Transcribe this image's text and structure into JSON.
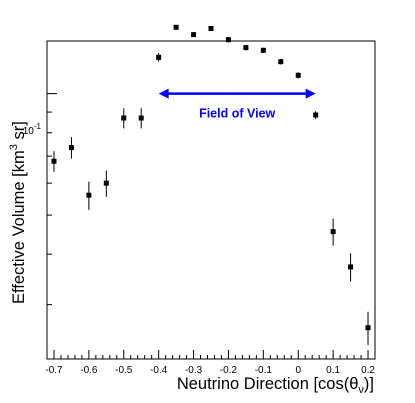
{
  "chart_data": {
    "type": "scatter",
    "xlabel_main": "Neutrino Direction [cos(θ",
    "xlabel_sub": "ν",
    "xlabel_tail": ")]",
    "ylabel_main": "Effective Volume [km",
    "ylabel_sup": "3",
    "ylabel_tail": " sr]",
    "xlim": [
      -0.72,
      0.22
    ],
    "ylim": [
      0.022,
      0.135
    ],
    "yscale": "log",
    "grid": false,
    "x_ticks": [
      -0.7,
      -0.6,
      -0.5,
      -0.4,
      -0.3,
      -0.2,
      -0.1,
      0,
      0.1,
      0.2
    ],
    "x_tick_labels": [
      "-0.7",
      "-0.6",
      "-0.5",
      "-0.4",
      "-0.3",
      "-0.2",
      "-0.1",
      "0",
      "0.1",
      "0.2"
    ],
    "y_label_tick": 0.1,
    "y_label_base": "10",
    "y_label_exp": "-1",
    "points": [
      {
        "x": -0.7,
        "y": 0.068,
        "err": 0.004
      },
      {
        "x": -0.65,
        "y": 0.0735,
        "err": 0.0045
      },
      {
        "x": -0.6,
        "y": 0.056,
        "err": 0.0045
      },
      {
        "x": -0.55,
        "y": 0.06,
        "err": 0.0045
      },
      {
        "x": -0.5,
        "y": 0.087,
        "err": 0.005
      },
      {
        "x": -0.45,
        "y": 0.087,
        "err": 0.005
      },
      {
        "x": -0.4,
        "y": 0.123,
        "err": 0.003
      },
      {
        "x": -0.35,
        "y": 0.146,
        "err": 0.002
      },
      {
        "x": -0.3,
        "y": 0.14,
        "err": 0.002
      },
      {
        "x": -0.25,
        "y": 0.145,
        "err": 0.002
      },
      {
        "x": -0.2,
        "y": 0.136,
        "err": 0.002
      },
      {
        "x": -0.15,
        "y": 0.13,
        "err": 0.002
      },
      {
        "x": -0.1,
        "y": 0.128,
        "err": 0.002
      },
      {
        "x": -0.05,
        "y": 0.12,
        "err": 0.002
      },
      {
        "x": 0.0,
        "y": 0.111,
        "err": 0.002
      },
      {
        "x": 0.05,
        "y": 0.0885,
        "err": 0.002
      },
      {
        "x": 0.1,
        "y": 0.0455,
        "err": 0.0035
      },
      {
        "x": 0.15,
        "y": 0.0372,
        "err": 0.003
      },
      {
        "x": 0.2,
        "y": 0.0263,
        "err": 0.0025
      }
    ],
    "annotation": {
      "text": "Field of View",
      "x_from": -0.4,
      "x_to": 0.05,
      "y": 0.1,
      "color": "#0000ff"
    }
  }
}
